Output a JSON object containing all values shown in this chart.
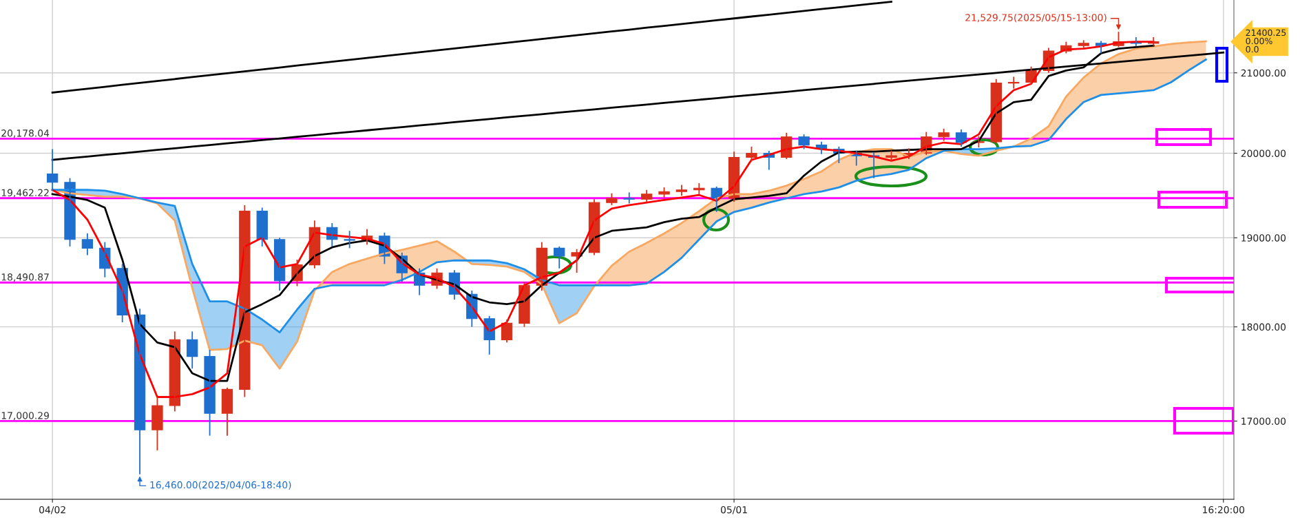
{
  "chart_data": {
    "type": "candlestick",
    "categories": [
      "04/02",
      null,
      null,
      null,
      null,
      null,
      null,
      null,
      null,
      null,
      null,
      null,
      null,
      null,
      null,
      null,
      null,
      null,
      null,
      null,
      null,
      null,
      null,
      null,
      null,
      null,
      null,
      null,
      null,
      null,
      null,
      null,
      null,
      null,
      null,
      null,
      null,
      null,
      null,
      "05/01",
      null,
      null,
      null,
      null,
      null,
      null,
      null,
      null,
      null,
      null,
      null,
      null,
      null,
      null,
      null,
      null,
      null,
      null,
      null,
      null,
      null,
      null,
      null,
      null,
      null,
      null,
      null,
      "16:20:00"
    ],
    "ohlc": [
      [
        19750,
        20050,
        19550,
        19650
      ],
      [
        19650,
        19700,
        18900,
        18980
      ],
      [
        18980,
        19050,
        18800,
        18880
      ],
      [
        18880,
        18950,
        18550,
        18650
      ],
      [
        18650,
        18700,
        18050,
        18130
      ],
      [
        18130,
        18200,
        16460,
        16910
      ],
      [
        16910,
        17250,
        16700,
        17160
      ],
      [
        17160,
        17950,
        17100,
        17860
      ],
      [
        17860,
        17950,
        17550,
        17680
      ],
      [
        17680,
        17750,
        16850,
        17080
      ],
      [
        17080,
        17350,
        16850,
        17330
      ],
      [
        17330,
        19380,
        17250,
        19310
      ],
      [
        19310,
        19350,
        18900,
        18980
      ],
      [
        18980,
        19000,
        18400,
        18510
      ],
      [
        18510,
        18750,
        18450,
        18690
      ],
      [
        18690,
        19200,
        18650,
        19120
      ],
      [
        19120,
        19170,
        18900,
        18980
      ],
      [
        18980,
        19080,
        18880,
        18970
      ],
      [
        18970,
        19100,
        18920,
        19020
      ],
      [
        19020,
        19060,
        18700,
        18790
      ],
      [
        18790,
        18830,
        18500,
        18600
      ],
      [
        18600,
        18650,
        18350,
        18460
      ],
      [
        18460,
        18650,
        18420,
        18600
      ],
      [
        18600,
        18630,
        18300,
        18360
      ],
      [
        18360,
        18400,
        18000,
        18090
      ],
      [
        18090,
        18120,
        17700,
        17860
      ],
      [
        17860,
        18080,
        17830,
        18040
      ],
      [
        18040,
        18500,
        18000,
        18460
      ],
      [
        18460,
        18950,
        18400,
        18880
      ],
      [
        18880,
        18900,
        18650,
        18790
      ],
      [
        18790,
        18870,
        18600,
        18830
      ],
      [
        18830,
        19450,
        18800,
        19410
      ],
      [
        19410,
        19520,
        19380,
        19460
      ],
      [
        19460,
        19530,
        19400,
        19450
      ],
      [
        19450,
        19560,
        19420,
        19510
      ],
      [
        19510,
        19590,
        19470,
        19540
      ],
      [
        19540,
        19620,
        19490,
        19560
      ],
      [
        19560,
        19640,
        19510,
        19580
      ],
      [
        19580,
        19600,
        19300,
        19460
      ],
      [
        19460,
        20020,
        19420,
        19950
      ],
      [
        19950,
        20080,
        19900,
        20000
      ],
      [
        20000,
        20030,
        19800,
        19950
      ],
      [
        19950,
        20250,
        19930,
        20200
      ],
      [
        20200,
        20230,
        20050,
        20100
      ],
      [
        20100,
        20140,
        19990,
        20050
      ],
      [
        20050,
        20080,
        19880,
        20000
      ],
      [
        20000,
        20030,
        19850,
        19970
      ],
      [
        19970,
        20010,
        19700,
        19950
      ],
      [
        19950,
        20030,
        19900,
        19970
      ],
      [
        19970,
        20060,
        19930,
        20000
      ],
      [
        20000,
        20260,
        19980,
        20200
      ],
      [
        20200,
        20300,
        20150,
        20250
      ],
      [
        20250,
        20290,
        20080,
        20130
      ],
      [
        20130,
        20210,
        20070,
        20140
      ],
      [
        20140,
        20920,
        20120,
        20870
      ],
      [
        20870,
        20950,
        20800,
        20880
      ],
      [
        20880,
        21080,
        20850,
        21030
      ],
      [
        21030,
        21320,
        21000,
        21280
      ],
      [
        21280,
        21400,
        21250,
        21350
      ],
      [
        21350,
        21420,
        21320,
        21380
      ],
      [
        21380,
        21410,
        21250,
        21350
      ],
      [
        21350,
        21529.75,
        21330,
        21400
      ],
      [
        21400,
        21460,
        21340,
        21380
      ],
      [
        21380,
        21460,
        21350,
        21400.25
      ],
      null,
      null,
      null,
      null
    ],
    "colors": [
      "#1f6fcf",
      "#1f6fcf",
      "#1f6fcf",
      "#1f6fcf",
      "#1f6fcf",
      "#1f6fcf",
      "#d9301c",
      "#d9301c",
      "#1f6fcf",
      "#1f6fcf",
      "#d9301c",
      "#d9301c",
      "#1f6fcf",
      "#1f6fcf",
      "#d9301c",
      "#d9301c",
      "#1f6fcf",
      "#1f6fcf",
      "#d9301c",
      "#1f6fcf",
      "#1f6fcf",
      "#1f6fcf",
      "#d9301c",
      "#1f6fcf",
      "#1f6fcf",
      "#1f6fcf",
      "#d9301c",
      "#d9301c",
      "#d9301c",
      "#1f6fcf",
      "#d9301c",
      "#d9301c",
      "#d9301c",
      "#1f6fcf",
      "#d9301c",
      "#d9301c",
      "#d9301c",
      "#d9301c",
      "#1f6fcf",
      "#d9301c",
      "#d9301c",
      "#1f6fcf",
      "#d9301c",
      "#1f6fcf",
      "#1f6fcf",
      "#1f6fcf",
      "#1f6fcf",
      "#1f6fcf",
      "#d9301c",
      "#d9301c",
      "#d9301c",
      "#d9301c",
      "#1f6fcf",
      "#d9301c",
      "#d9301c",
      "#d9301c",
      "#d9301c",
      "#d9301c",
      "#d9301c",
      "#d9301c",
      "#1f6fcf",
      "#d9301c",
      "#1f6fcf",
      "#d9301c",
      null,
      null,
      null,
      null
    ],
    "series": [
      {
        "type": "line",
        "color": "#f8a860",
        "values": [
          19560,
          19520,
          19500,
          19480,
          19480,
          19460,
          19400,
          19200,
          18430,
          17750,
          17760,
          17850,
          17800,
          17550,
          17840,
          18400,
          18610,
          18700,
          18760,
          18820,
          18860,
          18910,
          18960,
          18840,
          18700,
          18690,
          18670,
          18610,
          18470,
          18040,
          18150,
          18450,
          18680,
          18840,
          18940,
          19050,
          19170,
          19310,
          19460,
          19510,
          19510,
          19550,
          19610,
          19690,
          19780,
          19920,
          20010,
          20050,
          20050,
          19960,
          20020,
          20030,
          19990,
          19970,
          20030,
          20080,
          20180,
          20330,
          20700,
          20940,
          21120,
          21240,
          21310,
          21340,
          21370,
          21390,
          21405,
          null
        ]
      },
      {
        "type": "line",
        "color": "#1e8fe8",
        "values": [
          19560,
          19560,
          19560,
          19550,
          19510,
          19460,
          19410,
          19370,
          18700,
          18280,
          18280,
          18200,
          18080,
          17940,
          18190,
          18420,
          18460,
          18460,
          18460,
          18460,
          18520,
          18610,
          18720,
          18740,
          18740,
          18740,
          18710,
          18640,
          18520,
          18460,
          18460,
          18460,
          18460,
          18460,
          18480,
          18610,
          18770,
          18980,
          19190,
          19300,
          19350,
          19410,
          19460,
          19510,
          19540,
          19590,
          19670,
          19720,
          19750,
          19800,
          19940,
          20030,
          20050,
          20050,
          20060,
          20080,
          20090,
          20160,
          20420,
          20630,
          20720,
          20740,
          20760,
          20780,
          20880,
          21030,
          21170,
          null
        ]
      },
      {
        "type": "line",
        "color": "#000000",
        "values": [
          19510,
          19480,
          19440,
          19350,
          18750,
          18030,
          17830,
          17780,
          17500,
          17420,
          17420,
          18160,
          18250,
          18350,
          18590,
          18790,
          18890,
          18940,
          18970,
          18910,
          18760,
          18580,
          18520,
          18470,
          18330,
          18270,
          18250,
          18280,
          18460,
          18600,
          18740,
          19000,
          19080,
          19100,
          19120,
          19180,
          19220,
          19240,
          19350,
          19450,
          19470,
          19490,
          19520,
          19730,
          19900,
          20010,
          20020,
          20020,
          20030,
          20040,
          20050,
          20050,
          20050,
          20150,
          20490,
          20630,
          20660,
          20960,
          21030,
          21070,
          21250,
          21310,
          21330,
          21350,
          null,
          null,
          null,
          null
        ]
      },
      {
        "type": "line",
        "color": "#ff0000",
        "values": [
          19560,
          19440,
          19210,
          18830,
          18400,
          17700,
          17250,
          17250,
          17280,
          17350,
          17500,
          18900,
          19000,
          18660,
          18700,
          19060,
          19030,
          19010,
          18990,
          18930,
          18710,
          18580,
          18540,
          18440,
          18220,
          17950,
          18050,
          18460,
          18550,
          18600,
          18740,
          19200,
          19340,
          19380,
          19410,
          19440,
          19470,
          19500,
          19430,
          19600,
          19920,
          19980,
          20050,
          20080,
          20050,
          20030,
          20000,
          19960,
          19910,
          19960,
          20080,
          20130,
          20110,
          20230,
          20580,
          20780,
          20860,
          21200,
          21300,
          21310,
          21340,
          21390,
          21400,
          21400,
          null,
          null,
          null,
          null
        ]
      },
      {
        "type": "line",
        "color": "#000000",
        "values": [
          20750,
          20774,
          20799,
          20823,
          20848,
          20872,
          20897,
          20921,
          20946,
          20970,
          20995,
          21019,
          21044,
          21068,
          21093,
          21117,
          21142,
          21166,
          21191,
          21215,
          21240,
          21264,
          21289,
          21313,
          21338,
          21362,
          21387,
          21411,
          21436,
          21460,
          21485,
          21509,
          21534,
          21558,
          21583,
          21607,
          21632,
          21656,
          21681,
          21705,
          21730,
          21754,
          21779,
          21803,
          21828,
          21852,
          21877,
          21901,
          21926,
          null,
          null,
          null,
          null,
          null,
          null,
          null,
          null,
          null,
          null,
          null,
          null,
          null,
          null,
          null,
          null,
          null,
          null,
          null
        ]
      },
      {
        "type": "line",
        "color": "#000000",
        "values": [
          19920,
          19940,
          19960,
          19980,
          20000,
          20020,
          20040,
          20060,
          20080,
          20100,
          20120,
          20140,
          20160,
          20180,
          20200,
          20220,
          20240,
          20260,
          20280,
          20300,
          20320,
          20340,
          20360,
          20380,
          20400,
          20420,
          20440,
          20460,
          20480,
          20500,
          20520,
          20540,
          20560,
          20580,
          20600,
          20620,
          20640,
          20660,
          20680,
          20700,
          20720,
          20740,
          20760,
          20780,
          20800,
          20820,
          20840,
          20860,
          20880,
          20900,
          20920,
          20940,
          20960,
          20980,
          21000,
          21020,
          21040,
          21060,
          21080,
          21100,
          21120,
          21140,
          21160,
          21180,
          21200,
          21220,
          21240,
          21260
        ]
      }
    ],
    "ylim": [
      16212,
      21949
    ],
    "yticks": [
      {
        "value": 17000,
        "label": "17000.00"
      },
      {
        "value": 18000,
        "label": "18000.00"
      },
      {
        "value": 19000,
        "label": "19000.00"
      },
      {
        "value": 20000,
        "label": "20000.00"
      },
      {
        "value": 21000,
        "label": "21000.00"
      }
    ],
    "log": true,
    "grid": true,
    "ref_lines": [
      {
        "axis": "y",
        "value": 20178.04,
        "label": "20,178.04",
        "color": "#ff00ff"
      },
      {
        "axis": "y",
        "value": 19462.22,
        "label": "19,462.22",
        "color": "#ff00ff"
      },
      {
        "axis": "y",
        "value": 18490.87,
        "label": "18,490.87",
        "color": "#ff00ff"
      },
      {
        "axis": "y",
        "value": 17000.29,
        "label": "17,000.29",
        "color": "#ff00ff"
      }
    ],
    "annotations": [
      "21,529.75(2025/05/15-13:00)",
      "16,460.00(2025/04/06-18:40)",
      "21400.25\n0.00%\n0.0"
    ]
  }
}
